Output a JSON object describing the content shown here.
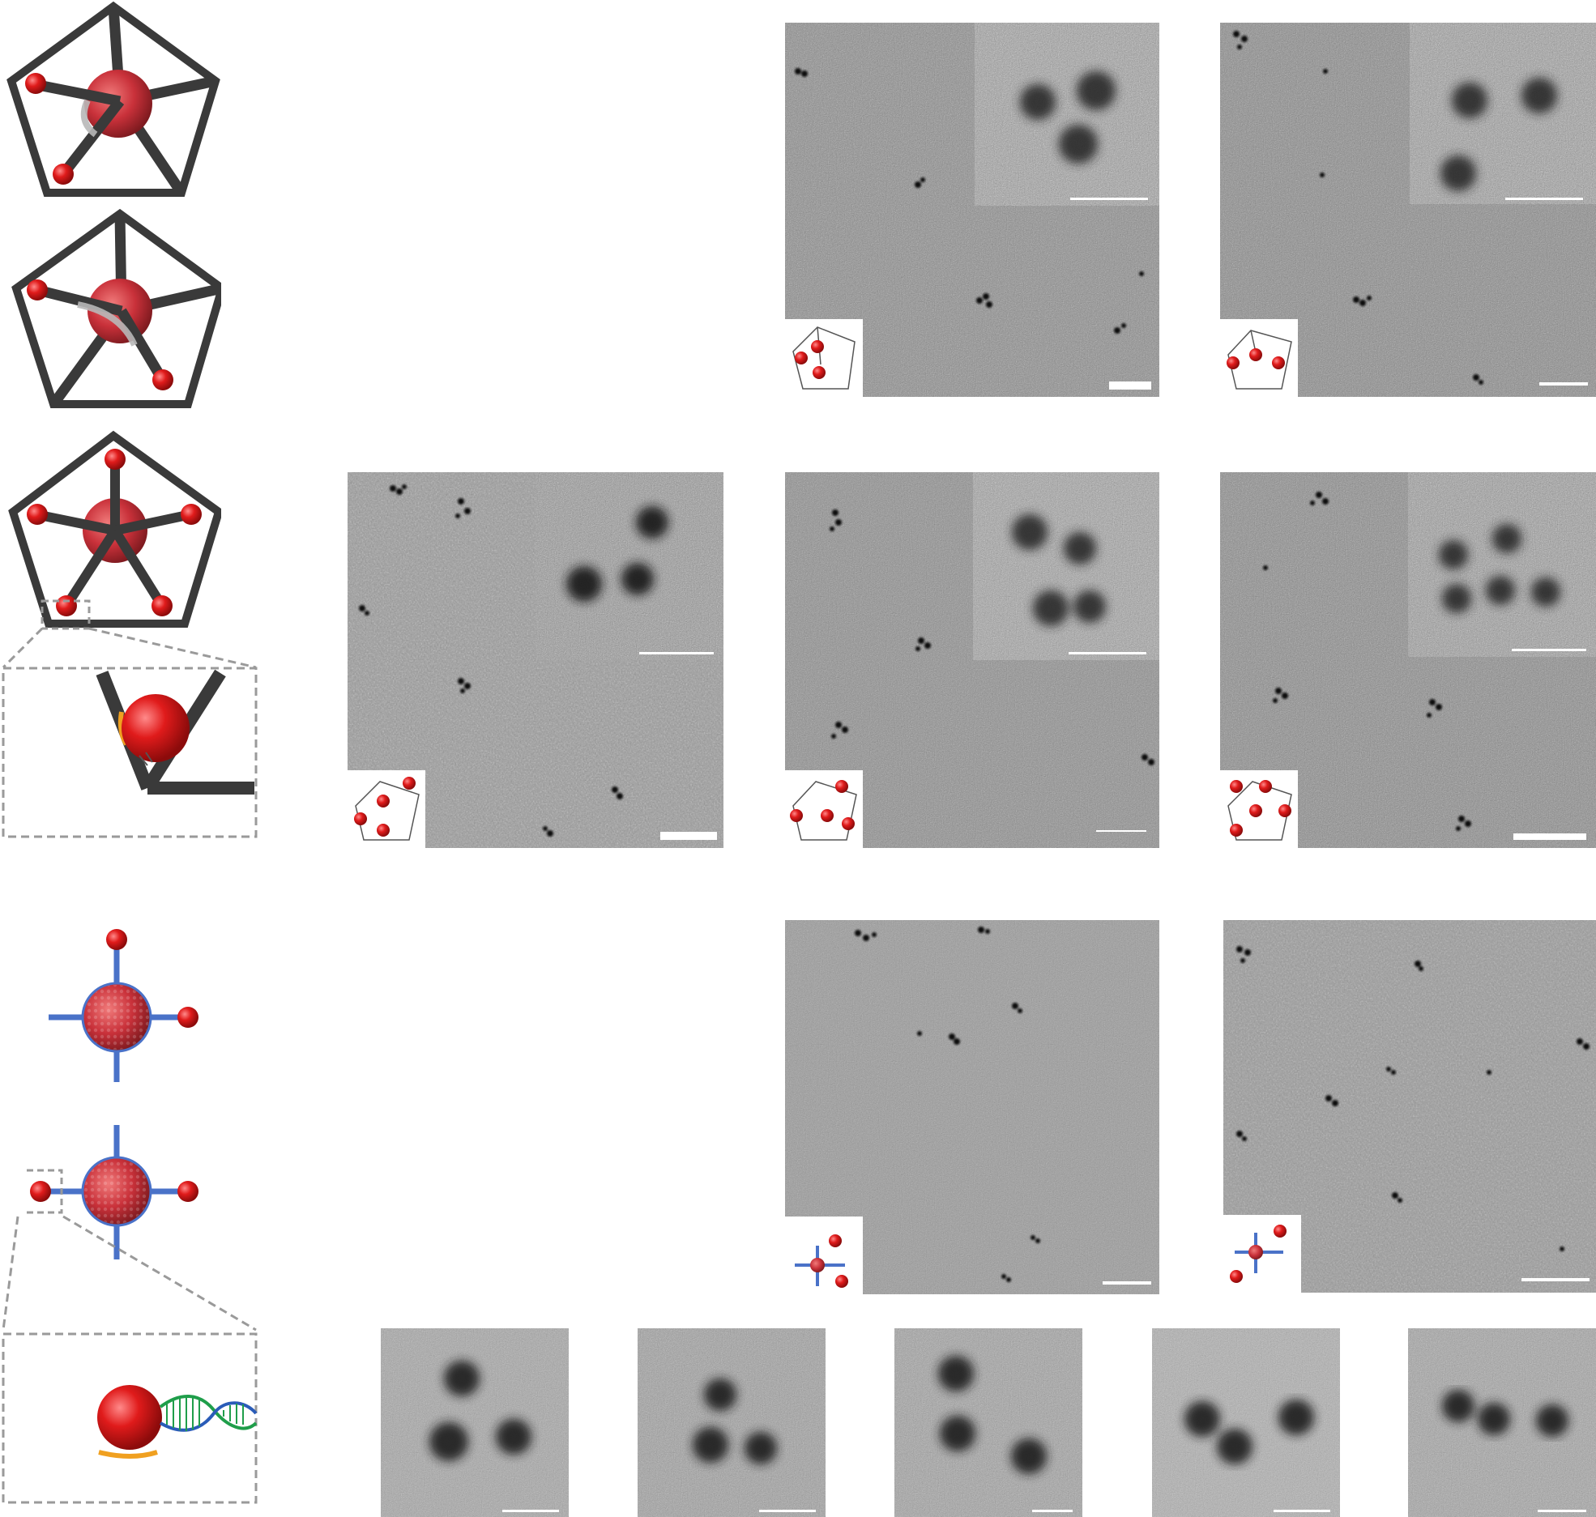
{
  "figure": {
    "colors": {
      "frame": "#3a3a3a",
      "particle": "#e01b1b",
      "particle_highlight": "#ff6b6b",
      "core": "#c9313a",
      "arm_blue": "#4a72c8",
      "dna_green": "#1f9e4a",
      "dna_blue": "#2a5cb8",
      "dashed": "#9a9a9a",
      "tem_gray": "#8a8a8a"
    },
    "schematics": [
      {
        "name": "pentagon-frame-two-particles-adjacent",
        "icon": "pentagon-frame-icon"
      },
      {
        "name": "pentagon-frame-two-particles-distant",
        "icon": "pentagon-frame-icon"
      },
      {
        "name": "pentagon-frame-five-particles",
        "icon": "pentagon-frame-icon"
      },
      {
        "name": "pentagon-vertex-zoom",
        "icon": "zoom-detail-icon"
      },
      {
        "name": "four-arm-junction-two-particles-corner",
        "icon": "cross-junction-icon"
      },
      {
        "name": "four-arm-junction-two-particles-linear",
        "icon": "cross-junction-icon"
      },
      {
        "name": "dna-linker-zoom",
        "icon": "dna-helix-icon"
      }
    ],
    "tem_panels": [
      {
        "name": "tem-trimer-frame-a",
        "has_inset": true
      },
      {
        "name": "tem-trimer-frame-b",
        "has_inset": true
      },
      {
        "name": "tem-tetramer-frame-a",
        "has_inset": true
      },
      {
        "name": "tem-tetramer-frame-b",
        "has_inset": true
      },
      {
        "name": "tem-pentamer-frame",
        "has_inset": true
      },
      {
        "name": "tem-cross-dimer-a",
        "has_inset": false
      },
      {
        "name": "tem-cross-dimer-b",
        "has_inset": false
      }
    ],
    "bottom_closeups": [
      {
        "name": "closeup-1"
      },
      {
        "name": "closeup-2"
      },
      {
        "name": "closeup-3"
      },
      {
        "name": "closeup-4"
      },
      {
        "name": "closeup-5"
      }
    ]
  }
}
